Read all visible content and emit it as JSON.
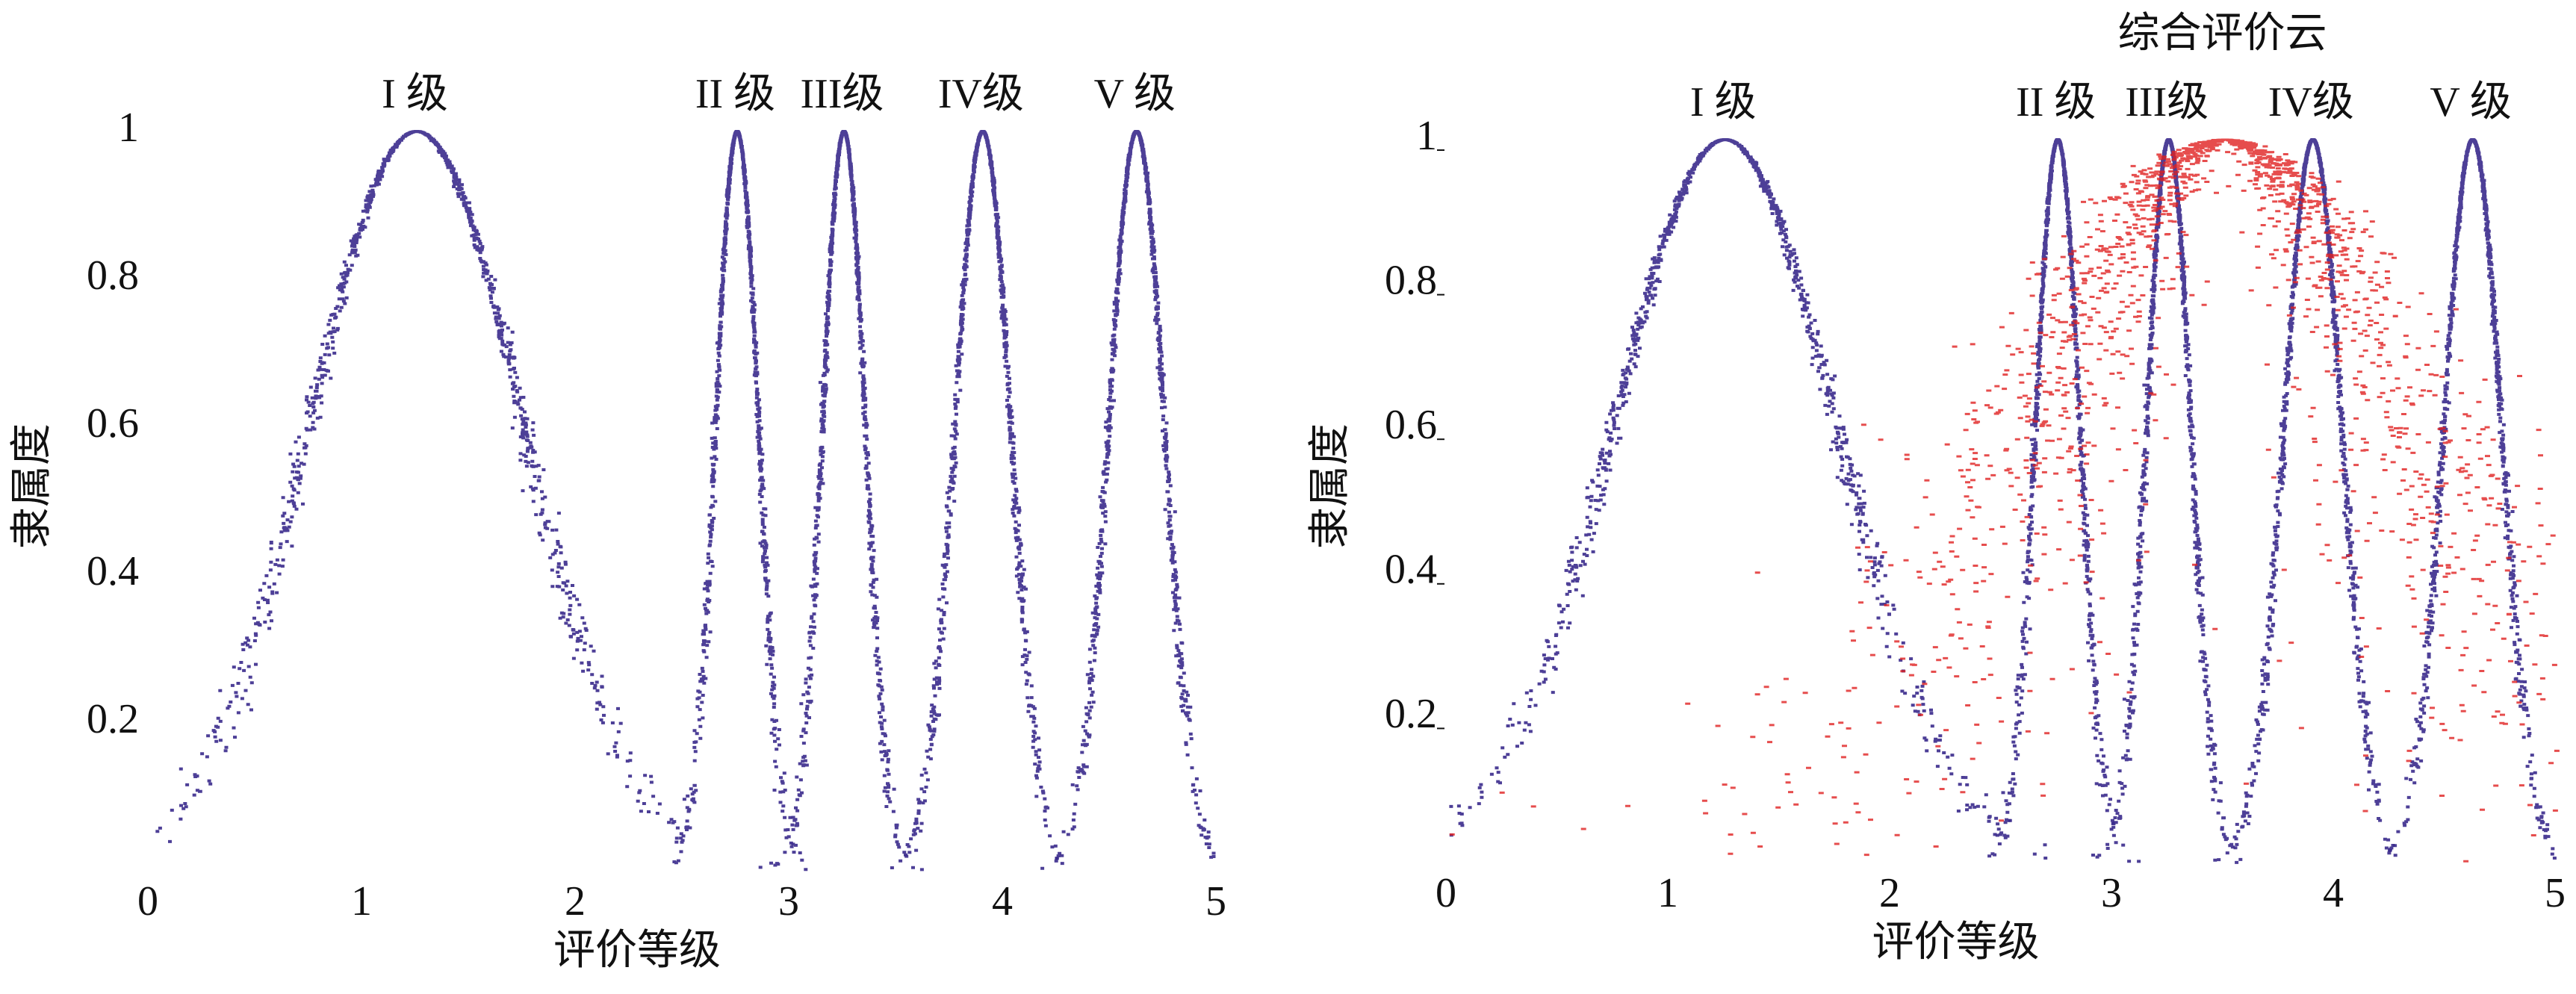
{
  "chart_data": [
    {
      "type": "cloud",
      "xlabel": "评价等级",
      "ylabel": "隶属度",
      "xlim": [
        0,
        5
      ],
      "xticks": [
        0,
        1,
        2,
        3,
        4,
        5
      ],
      "ylim": [
        0,
        1
      ],
      "yticks": [
        0.2,
        0.4,
        0.6,
        0.8,
        1
      ],
      "series": [
        {
          "name": "I 级",
          "color": "#3a2a8c",
          "ex": 1.25,
          "en": 0.5,
          "he": 0.02
        },
        {
          "name": "II 级",
          "color": "#3a2a8c",
          "ex": 2.75,
          "en": 0.1,
          "he": 0.005
        },
        {
          "name": "III级",
          "color": "#3a2a8c",
          "ex": 3.25,
          "en": 0.1,
          "he": 0.005
        },
        {
          "name": "IV级",
          "color": "#3a2a8c",
          "ex": 3.9,
          "en": 0.13,
          "he": 0.006
        },
        {
          "name": "V 级",
          "color": "#3a2a8c",
          "ex": 4.62,
          "en": 0.13,
          "he": 0.006
        }
      ]
    },
    {
      "type": "cloud",
      "xlabel": "评价等级",
      "ylabel": "隶属度",
      "xlim": [
        0,
        5
      ],
      "xticks": [
        0,
        1,
        2,
        3,
        4,
        5
      ],
      "ylim": [
        0,
        1
      ],
      "yticks": [
        0.2,
        0.4,
        0.6,
        0.8,
        1
      ],
      "series": [
        {
          "name": "I 级",
          "color": "#3a2a8c",
          "ex": 1.25,
          "en": 0.5,
          "he": 0.02
        },
        {
          "name": "II 级",
          "color": "#3a2a8c",
          "ex": 2.75,
          "en": 0.1,
          "he": 0.005
        },
        {
          "name": "III级",
          "color": "#3a2a8c",
          "ex": 3.25,
          "en": 0.1,
          "he": 0.005
        },
        {
          "name": "IV级",
          "color": "#3a2a8c",
          "ex": 3.9,
          "en": 0.13,
          "he": 0.006
        },
        {
          "name": "V 级",
          "color": "#3a2a8c",
          "ex": 4.62,
          "en": 0.13,
          "he": 0.006
        },
        {
          "name": "综合评价云",
          "color": "#e02020",
          "ex": 3.5,
          "en": 0.8,
          "he": 0.25
        }
      ]
    }
  ]
}
